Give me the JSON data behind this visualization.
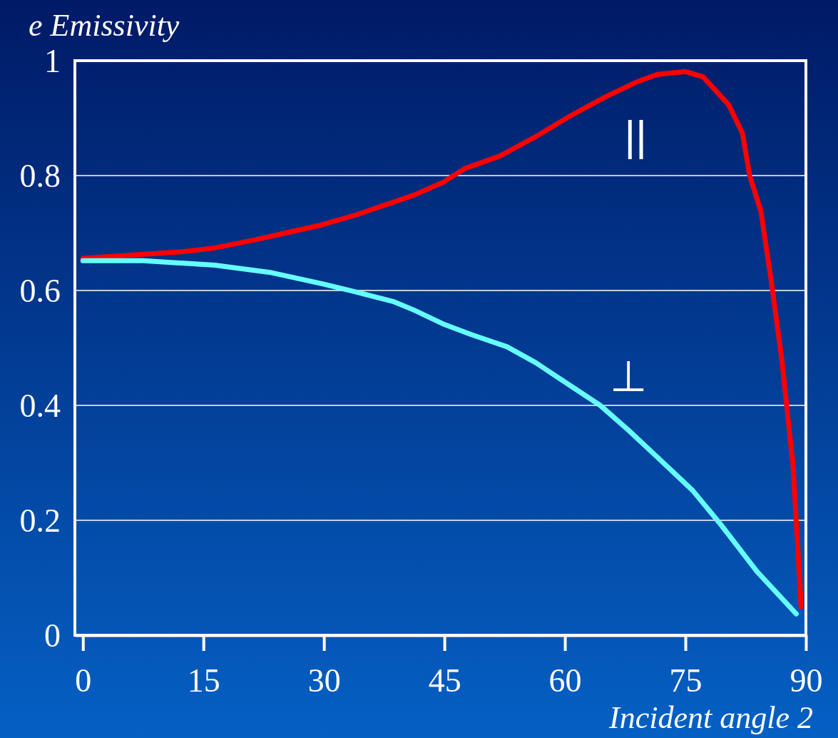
{
  "chart_data": {
    "type": "line",
    "ylabel": "e Emissivity",
    "xlabel": "Incident angle 2",
    "xlim": [
      -1,
      90
    ],
    "ylim": [
      0,
      1
    ],
    "xticks": [
      0,
      15,
      30,
      45,
      60,
      75,
      90
    ],
    "yticks": [
      0,
      0.2,
      0.4,
      0.6,
      0.8,
      1
    ],
    "grid": "y",
    "legend": false,
    "line_style": "solid",
    "marker": "none",
    "series": [
      {
        "name": "||",
        "color": "#ff0000",
        "x": [
          0,
          11.9,
          16.4,
          21.7,
          25.2,
          29.7,
          34.1,
          41.2,
          44.8,
          47.5,
          51.9,
          56.4,
          60.8,
          65.2,
          68.8,
          71.5,
          75,
          77.2,
          80.4,
          82.1,
          83,
          84.4,
          85.7,
          87,
          88.4,
          89.4
        ],
        "values": [
          0.656,
          0.667,
          0.674,
          0.689,
          0.7,
          0.714,
          0.732,
          0.766,
          0.788,
          0.812,
          0.834,
          0.868,
          0.905,
          0.938,
          0.962,
          0.976,
          0.981,
          0.972,
          0.923,
          0.874,
          0.8,
          0.738,
          0.615,
          0.48,
          0.295,
          0.05
        ]
      },
      {
        "name": "⊥",
        "color": "#66ffff",
        "x": [
          0,
          7.5,
          16.4,
          23.5,
          29.7,
          34.1,
          38.6,
          41.2,
          44.8,
          48.4,
          52.8,
          56.4,
          60.4,
          64.4,
          67.9,
          71.5,
          75.9,
          79.5,
          83.9,
          88.8
        ],
        "values": [
          0.652,
          0.652,
          0.644,
          0.631,
          0.612,
          0.597,
          0.581,
          0.566,
          0.542,
          0.523,
          0.502,
          0.474,
          0.437,
          0.4,
          0.357,
          0.31,
          0.252,
          0.191,
          0.111,
          0.037
        ]
      }
    ]
  }
}
